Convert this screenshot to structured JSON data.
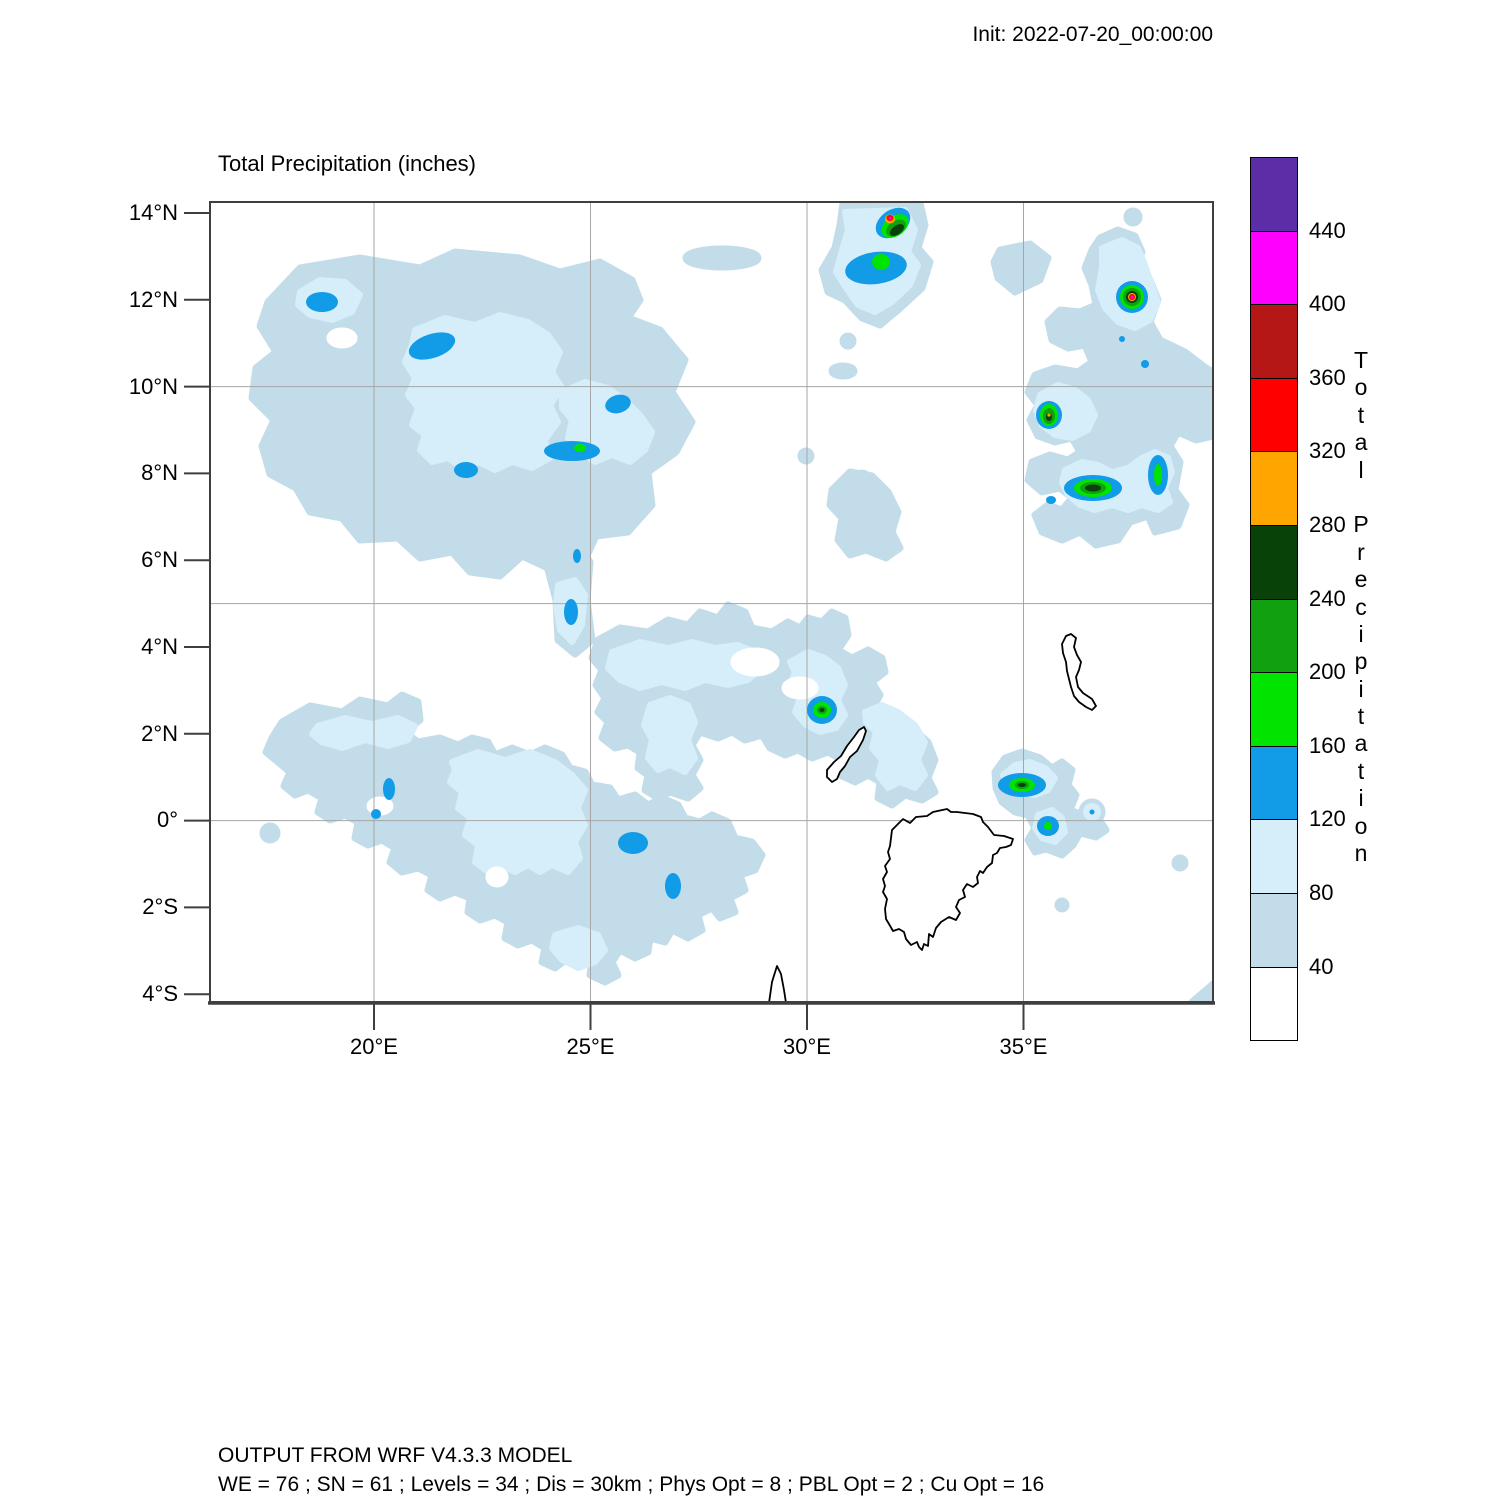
{
  "header": {
    "init_label": "Init: 2022-07-20_00:00:00"
  },
  "plot": {
    "title": "Total Precipitation (inches)"
  },
  "axes": {
    "y_ticks": [
      "14°N",
      "12°N",
      "10°N",
      "8°N",
      "6°N",
      "4°N",
      "2°N",
      "0°",
      "2°S",
      "4°S"
    ],
    "x_ticks": [
      "20°E",
      "25°E",
      "30°E",
      "35°E"
    ]
  },
  "colorbar": {
    "title_vertical": "Total Precipitation",
    "tick_labels": [
      "440",
      "400",
      "360",
      "320",
      "280",
      "240",
      "200",
      "160",
      "120",
      "80",
      "40"
    ],
    "colors_top_to_bottom": [
      "#5b2da6",
      "#fe00fe",
      "#b51717",
      "#fe0000",
      "#ffa500",
      "#084208",
      "#10a010",
      "#00e400",
      "#129be7",
      "#d6eefa",
      "#c2dde9",
      "#ffffff"
    ]
  },
  "footer": {
    "line1": "OUTPUT FROM WRF V4.3.3 MODEL",
    "line2": "WE = 76 ; SN = 61 ; Levels = 34 ; Dis = 30km ; Phys Opt = 8 ; PBL Opt = 2 ; Cu Opt = 16"
  },
  "chart_data": {
    "type": "heatmap",
    "title": "Total Precipitation (inches)",
    "init_time": "2022-07-20_00:00:00",
    "units": "inches",
    "xlabel_ticks_deg_east": [
      20,
      25,
      30,
      35
    ],
    "ylabel_ticks_deg_north": [
      14,
      12,
      10,
      8,
      6,
      4,
      2,
      0,
      -2,
      -4
    ],
    "x_range_deg_east": [
      16.2,
      39.4
    ],
    "y_range_deg_north": [
      -4.3,
      14.3
    ],
    "grid_spacing_deg": 5,
    "contour_levels_inches": [
      40,
      80,
      120,
      160,
      200,
      240,
      280,
      320,
      360,
      400,
      440
    ],
    "level_fill_colors_low_to_high": [
      "#ffffff",
      "#c2dde9",
      "#d6eefa",
      "#129be7",
      "#00e400",
      "#10a010",
      "#084208",
      "#ffa500",
      "#fe0000",
      "#b51717",
      "#fe00fe",
      "#5b2da6"
    ],
    "legend_position": "right-vertical-colorbar",
    "precip_maxima_centers": [
      {
        "lon_e": 31.9,
        "lat_n": 13.9,
        "approx_max_inches": 420
      },
      {
        "lon_e": 37.5,
        "lat_n": 12.1,
        "approx_max_inches": 420
      },
      {
        "lon_e": 35.6,
        "lat_n": 9.3,
        "approx_max_inches": 290
      },
      {
        "lon_e": 36.6,
        "lat_n": 7.6,
        "approx_max_inches": 260
      },
      {
        "lon_e": 38.1,
        "lat_n": 7.9,
        "approx_max_inches": 180
      },
      {
        "lon_e": 31.6,
        "lat_n": 12.9,
        "approx_max_inches": 190
      },
      {
        "lon_e": 24.8,
        "lat_n": 8.6,
        "approx_max_inches": 170
      },
      {
        "lon_e": 30.4,
        "lat_n": 2.7,
        "approx_max_inches": 260
      },
      {
        "lon_e": 35.0,
        "lat_n": 0.9,
        "approx_max_inches": 260
      },
      {
        "lon_e": 35.6,
        "lat_n": 0.0,
        "approx_max_inches": 170
      }
    ],
    "widespread_light_precip_inches": "40-120 over northwest, central and southwest of domain"
  }
}
